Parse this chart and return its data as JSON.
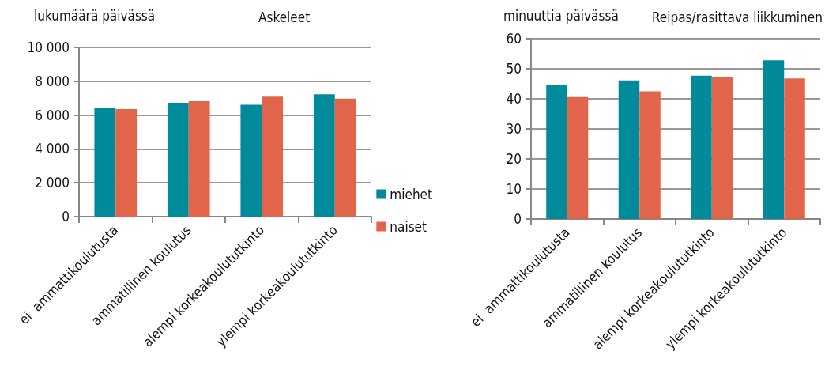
{
  "chart_data": [
    {
      "type": "bar",
      "title": "Askeleet",
      "ylabel": "lukumäärä päivässä",
      "categories": [
        "ei  ammattikoulutusta",
        "ammatillinen koulutus",
        "alempi korkeakoulututkinto",
        "ylempi korkeakoulututkinto"
      ],
      "series": [
        {
          "name": "miehet",
          "color": "#008a9a",
          "values": [
            6400,
            6730,
            6610,
            7230
          ]
        },
        {
          "name": "naiset",
          "color": "#e0654a",
          "values": [
            6350,
            6820,
            7090,
            6980
          ]
        }
      ],
      "ylim": [
        0,
        10000
      ],
      "yticks": [
        0,
        {
          "value": 2000,
          "label": "2 000"
        },
        {
          "value": 4000,
          "label": "4 000"
        },
        {
          "value": 6000,
          "label": "6 000"
        },
        {
          "value": 8000,
          "label": "8 000"
        },
        {
          "value": 10000,
          "label": "10 000"
        }
      ],
      "grid": "y",
      "legend": "right"
    },
    {
      "type": "bar",
      "title": "Reipas/rasittava liikkuminen",
      "ylabel": "minuuttia päivässä",
      "categories": [
        "ei  ammattikoulutusta",
        "ammatillinen koulutus",
        "alempi korkeakoulututkinto",
        "ylempi korkeakoulututkinto"
      ],
      "series": [
        {
          "color": "#008a9a",
          "values": [
            44.6,
            46.1,
            47.7,
            52.8
          ]
        },
        {
          "color": "#e0654a",
          "values": [
            40.6,
            42.5,
            47.4,
            46.8
          ]
        }
      ],
      "ylim": [
        0,
        60
      ],
      "yticks": [
        0,
        10,
        20,
        30,
        40,
        50,
        60
      ],
      "grid": "y"
    }
  ]
}
